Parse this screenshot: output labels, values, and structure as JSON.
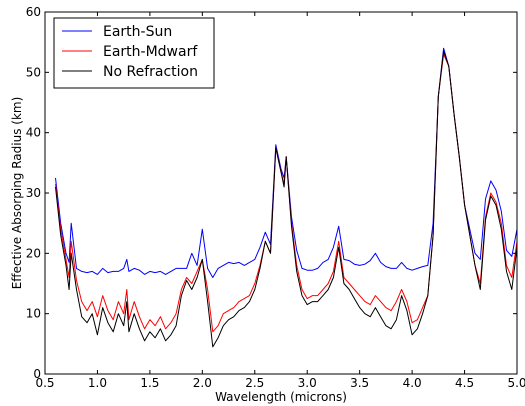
{
  "chart_data": {
    "type": "line",
    "title": "",
    "xlabel": "Wavelength (microns)",
    "ylabel": "Effective Absorping Radius (km)",
    "xlim": [
      0.5,
      5.0
    ],
    "ylim": [
      0,
      60
    ],
    "xticks": [
      0.5,
      1.0,
      1.5,
      2.0,
      2.5,
      3.0,
      3.5,
      4.0,
      4.5,
      5.0
    ],
    "xtick_labels": [
      "0.5",
      "1.0",
      "1.5",
      "2.0",
      "2.5",
      "3.0",
      "3.5",
      "4.0",
      "4.5",
      "5.0"
    ],
    "yticks": [
      0,
      10,
      20,
      30,
      40,
      50,
      60
    ],
    "ytick_labels": [
      "0",
      "10",
      "20",
      "30",
      "40",
      "50",
      "60"
    ],
    "grid": false,
    "legend_position": "top-left",
    "series": [
      {
        "name": "Earth-Sun",
        "color": "#0000ff",
        "x": [
          0.6,
          0.65,
          0.7,
          0.73,
          0.75,
          0.8,
          0.85,
          0.9,
          0.95,
          1.0,
          1.05,
          1.1,
          1.15,
          1.2,
          1.25,
          1.28,
          1.3,
          1.35,
          1.4,
          1.45,
          1.5,
          1.55,
          1.6,
          1.65,
          1.7,
          1.75,
          1.8,
          1.85,
          1.9,
          1.95,
          2.0,
          2.05,
          2.1,
          2.15,
          2.2,
          2.25,
          2.3,
          2.35,
          2.4,
          2.45,
          2.5,
          2.55,
          2.6,
          2.65,
          2.7,
          2.75,
          2.78,
          2.8,
          2.85,
          2.9,
          2.95,
          3.0,
          3.05,
          3.1,
          3.15,
          3.2,
          3.25,
          3.3,
          3.35,
          3.4,
          3.45,
          3.5,
          3.55,
          3.6,
          3.65,
          3.7,
          3.75,
          3.8,
          3.85,
          3.9,
          3.95,
          4.0,
          4.05,
          4.1,
          4.15,
          4.2,
          4.25,
          4.3,
          4.35,
          4.4,
          4.45,
          4.5,
          4.55,
          4.6,
          4.65,
          4.7,
          4.75,
          4.8,
          4.85,
          4.9,
          4.95,
          5.0
        ],
        "y": [
          32.5,
          25,
          20,
          18.5,
          25,
          17.5,
          17,
          16.8,
          17,
          16.5,
          17.5,
          16.8,
          17,
          17,
          17.5,
          19,
          17,
          17.5,
          17.2,
          16.5,
          17,
          16.8,
          17,
          16.5,
          17,
          17.5,
          17.5,
          17.5,
          20,
          18,
          24,
          17.5,
          16,
          17.5,
          18,
          18.5,
          18.3,
          18.5,
          18,
          18.5,
          19,
          21,
          23.5,
          21.5,
          38,
          34,
          32.5,
          36,
          26,
          20.5,
          17.5,
          17.2,
          17.2,
          17.5,
          18.5,
          19,
          21,
          24.5,
          19,
          18.8,
          18.2,
          18,
          18.2,
          18.8,
          20,
          18.5,
          17.8,
          17.5,
          17.5,
          18.5,
          17.5,
          17.2,
          17.5,
          17.8,
          18,
          25,
          46,
          54,
          51,
          43,
          36,
          28,
          24,
          20,
          19,
          29,
          32,
          30.5,
          27,
          20.5,
          19.5,
          24
        ]
      },
      {
        "name": "Earth-Mdwarf",
        "color": "#ff0000",
        "x": [
          0.6,
          0.65,
          0.7,
          0.73,
          0.75,
          0.8,
          0.85,
          0.9,
          0.95,
          1.0,
          1.05,
          1.1,
          1.15,
          1.2,
          1.25,
          1.28,
          1.3,
          1.35,
          1.4,
          1.45,
          1.5,
          1.55,
          1.6,
          1.65,
          1.7,
          1.75,
          1.8,
          1.85,
          1.9,
          1.95,
          2.0,
          2.05,
          2.1,
          2.15,
          2.2,
          2.25,
          2.3,
          2.35,
          2.4,
          2.45,
          2.5,
          2.55,
          2.6,
          2.65,
          2.7,
          2.75,
          2.78,
          2.8,
          2.85,
          2.9,
          2.95,
          3.0,
          3.05,
          3.1,
          3.15,
          3.2,
          3.25,
          3.3,
          3.35,
          3.4,
          3.45,
          3.5,
          3.55,
          3.6,
          3.65,
          3.7,
          3.75,
          3.8,
          3.85,
          3.9,
          3.95,
          4.0,
          4.05,
          4.1,
          4.15,
          4.2,
          4.25,
          4.3,
          4.35,
          4.4,
          4.45,
          4.5,
          4.55,
          4.6,
          4.65,
          4.7,
          4.75,
          4.8,
          4.85,
          4.9,
          4.95,
          5.0
        ],
        "y": [
          31.5,
          24,
          19,
          16,
          22,
          15.5,
          12,
          10.5,
          12,
          9.5,
          13,
          10.5,
          9,
          12,
          10,
          14,
          9,
          12,
          9.5,
          7.5,
          9,
          8,
          9.5,
          7.5,
          8.5,
          10,
          14,
          16,
          15,
          17,
          19,
          14,
          7,
          8,
          10,
          10.5,
          11,
          12,
          12.5,
          13,
          15,
          18,
          22,
          20,
          37.5,
          33.5,
          31.5,
          36,
          25,
          18,
          14,
          12.5,
          13,
          13,
          14,
          15,
          17,
          22,
          16,
          15,
          14,
          13,
          12,
          11.5,
          13,
          12,
          11,
          10.5,
          12,
          14,
          12,
          8.5,
          9,
          11,
          13,
          23,
          46,
          53,
          51,
          43,
          36,
          28,
          23,
          18,
          15,
          26,
          30,
          28.5,
          25,
          18,
          16,
          22
        ]
      },
      {
        "name": "No Refraction",
        "color": "#000000",
        "x": [
          0.6,
          0.65,
          0.7,
          0.73,
          0.75,
          0.8,
          0.85,
          0.9,
          0.95,
          1.0,
          1.05,
          1.1,
          1.15,
          1.2,
          1.25,
          1.28,
          1.3,
          1.35,
          1.4,
          1.45,
          1.5,
          1.55,
          1.6,
          1.65,
          1.7,
          1.75,
          1.8,
          1.85,
          1.9,
          1.95,
          2.0,
          2.05,
          2.1,
          2.15,
          2.2,
          2.25,
          2.3,
          2.35,
          2.4,
          2.45,
          2.5,
          2.55,
          2.6,
          2.65,
          2.7,
          2.75,
          2.78,
          2.8,
          2.85,
          2.9,
          2.95,
          3.0,
          3.05,
          3.1,
          3.15,
          3.2,
          3.25,
          3.3,
          3.35,
          3.4,
          3.45,
          3.5,
          3.55,
          3.6,
          3.65,
          3.7,
          3.75,
          3.8,
          3.85,
          3.9,
          3.95,
          4.0,
          4.05,
          4.1,
          4.15,
          4.2,
          4.25,
          4.3,
          4.35,
          4.4,
          4.45,
          4.5,
          4.55,
          4.6,
          4.65,
          4.7,
          4.75,
          4.8,
          4.85,
          4.9,
          4.95,
          5.0
        ],
        "y": [
          31,
          23,
          18,
          14,
          20,
          14,
          9.5,
          8.5,
          10,
          6.5,
          11,
          8.5,
          7,
          10,
          8,
          12,
          7,
          10,
          7.5,
          5.5,
          7,
          6,
          7.5,
          5.5,
          6.5,
          8,
          13,
          15.5,
          14,
          16,
          19,
          12,
          4.5,
          6,
          8,
          9,
          9.5,
          10.5,
          11,
          12,
          14,
          17.5,
          22,
          20,
          37.5,
          33.5,
          31,
          36,
          24.5,
          17,
          13,
          11.5,
          12,
          12,
          13,
          14,
          16,
          21,
          15,
          14,
          12.5,
          11,
          10,
          9.5,
          11,
          9.5,
          8,
          7.5,
          9,
          13,
          10.5,
          6.5,
          7.5,
          10,
          13,
          23,
          46,
          53.5,
          51,
          43,
          36,
          28,
          23,
          18,
          14,
          25.5,
          29.5,
          28,
          24,
          17,
          14,
          21
        ]
      }
    ]
  }
}
